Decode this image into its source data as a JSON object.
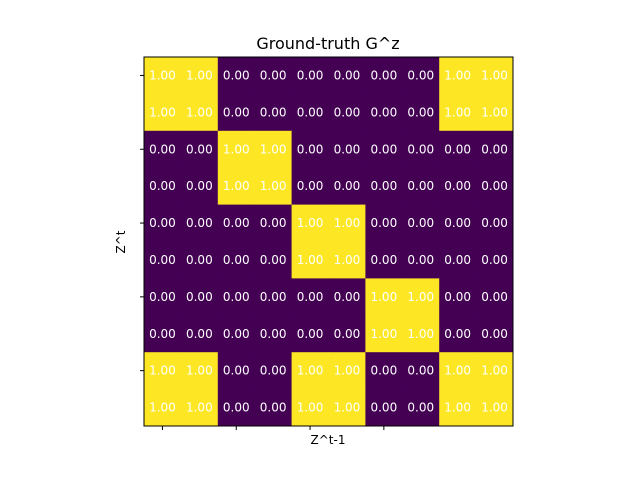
{
  "chart_data": {
    "type": "heatmap",
    "title": "Ground-truth G^z",
    "xlabel": "Z^t-1",
    "ylabel": "Z^t",
    "rows": 10,
    "cols": 10,
    "values": [
      [
        1,
        1,
        0,
        0,
        0,
        0,
        0,
        0,
        1,
        1
      ],
      [
        1,
        1,
        0,
        0,
        0,
        0,
        0,
        0,
        1,
        1
      ],
      [
        0,
        0,
        1,
        1,
        0,
        0,
        0,
        0,
        0,
        0
      ],
      [
        0,
        0,
        1,
        1,
        0,
        0,
        0,
        0,
        0,
        0
      ],
      [
        0,
        0,
        0,
        0,
        1,
        1,
        0,
        0,
        0,
        0
      ],
      [
        0,
        0,
        0,
        0,
        1,
        1,
        0,
        0,
        0,
        0
      ],
      [
        0,
        0,
        0,
        0,
        0,
        0,
        1,
        1,
        0,
        0
      ],
      [
        0,
        0,
        0,
        0,
        0,
        0,
        1,
        1,
        0,
        0
      ],
      [
        1,
        1,
        0,
        0,
        1,
        1,
        0,
        0,
        1,
        1
      ],
      [
        1,
        1,
        0,
        0,
        1,
        1,
        0,
        0,
        1,
        1
      ]
    ],
    "value_format": "0.00",
    "colormap": "viridis",
    "colors": {
      "low": "#440154",
      "high": "#fde725",
      "label": "#ffffff"
    },
    "x_tick_labels": [
      "",
      "",
      "",
      ""
    ],
    "y_tick_labels": [
      "",
      "",
      "",
      "",
      ""
    ],
    "grid": false,
    "legend": "none"
  }
}
